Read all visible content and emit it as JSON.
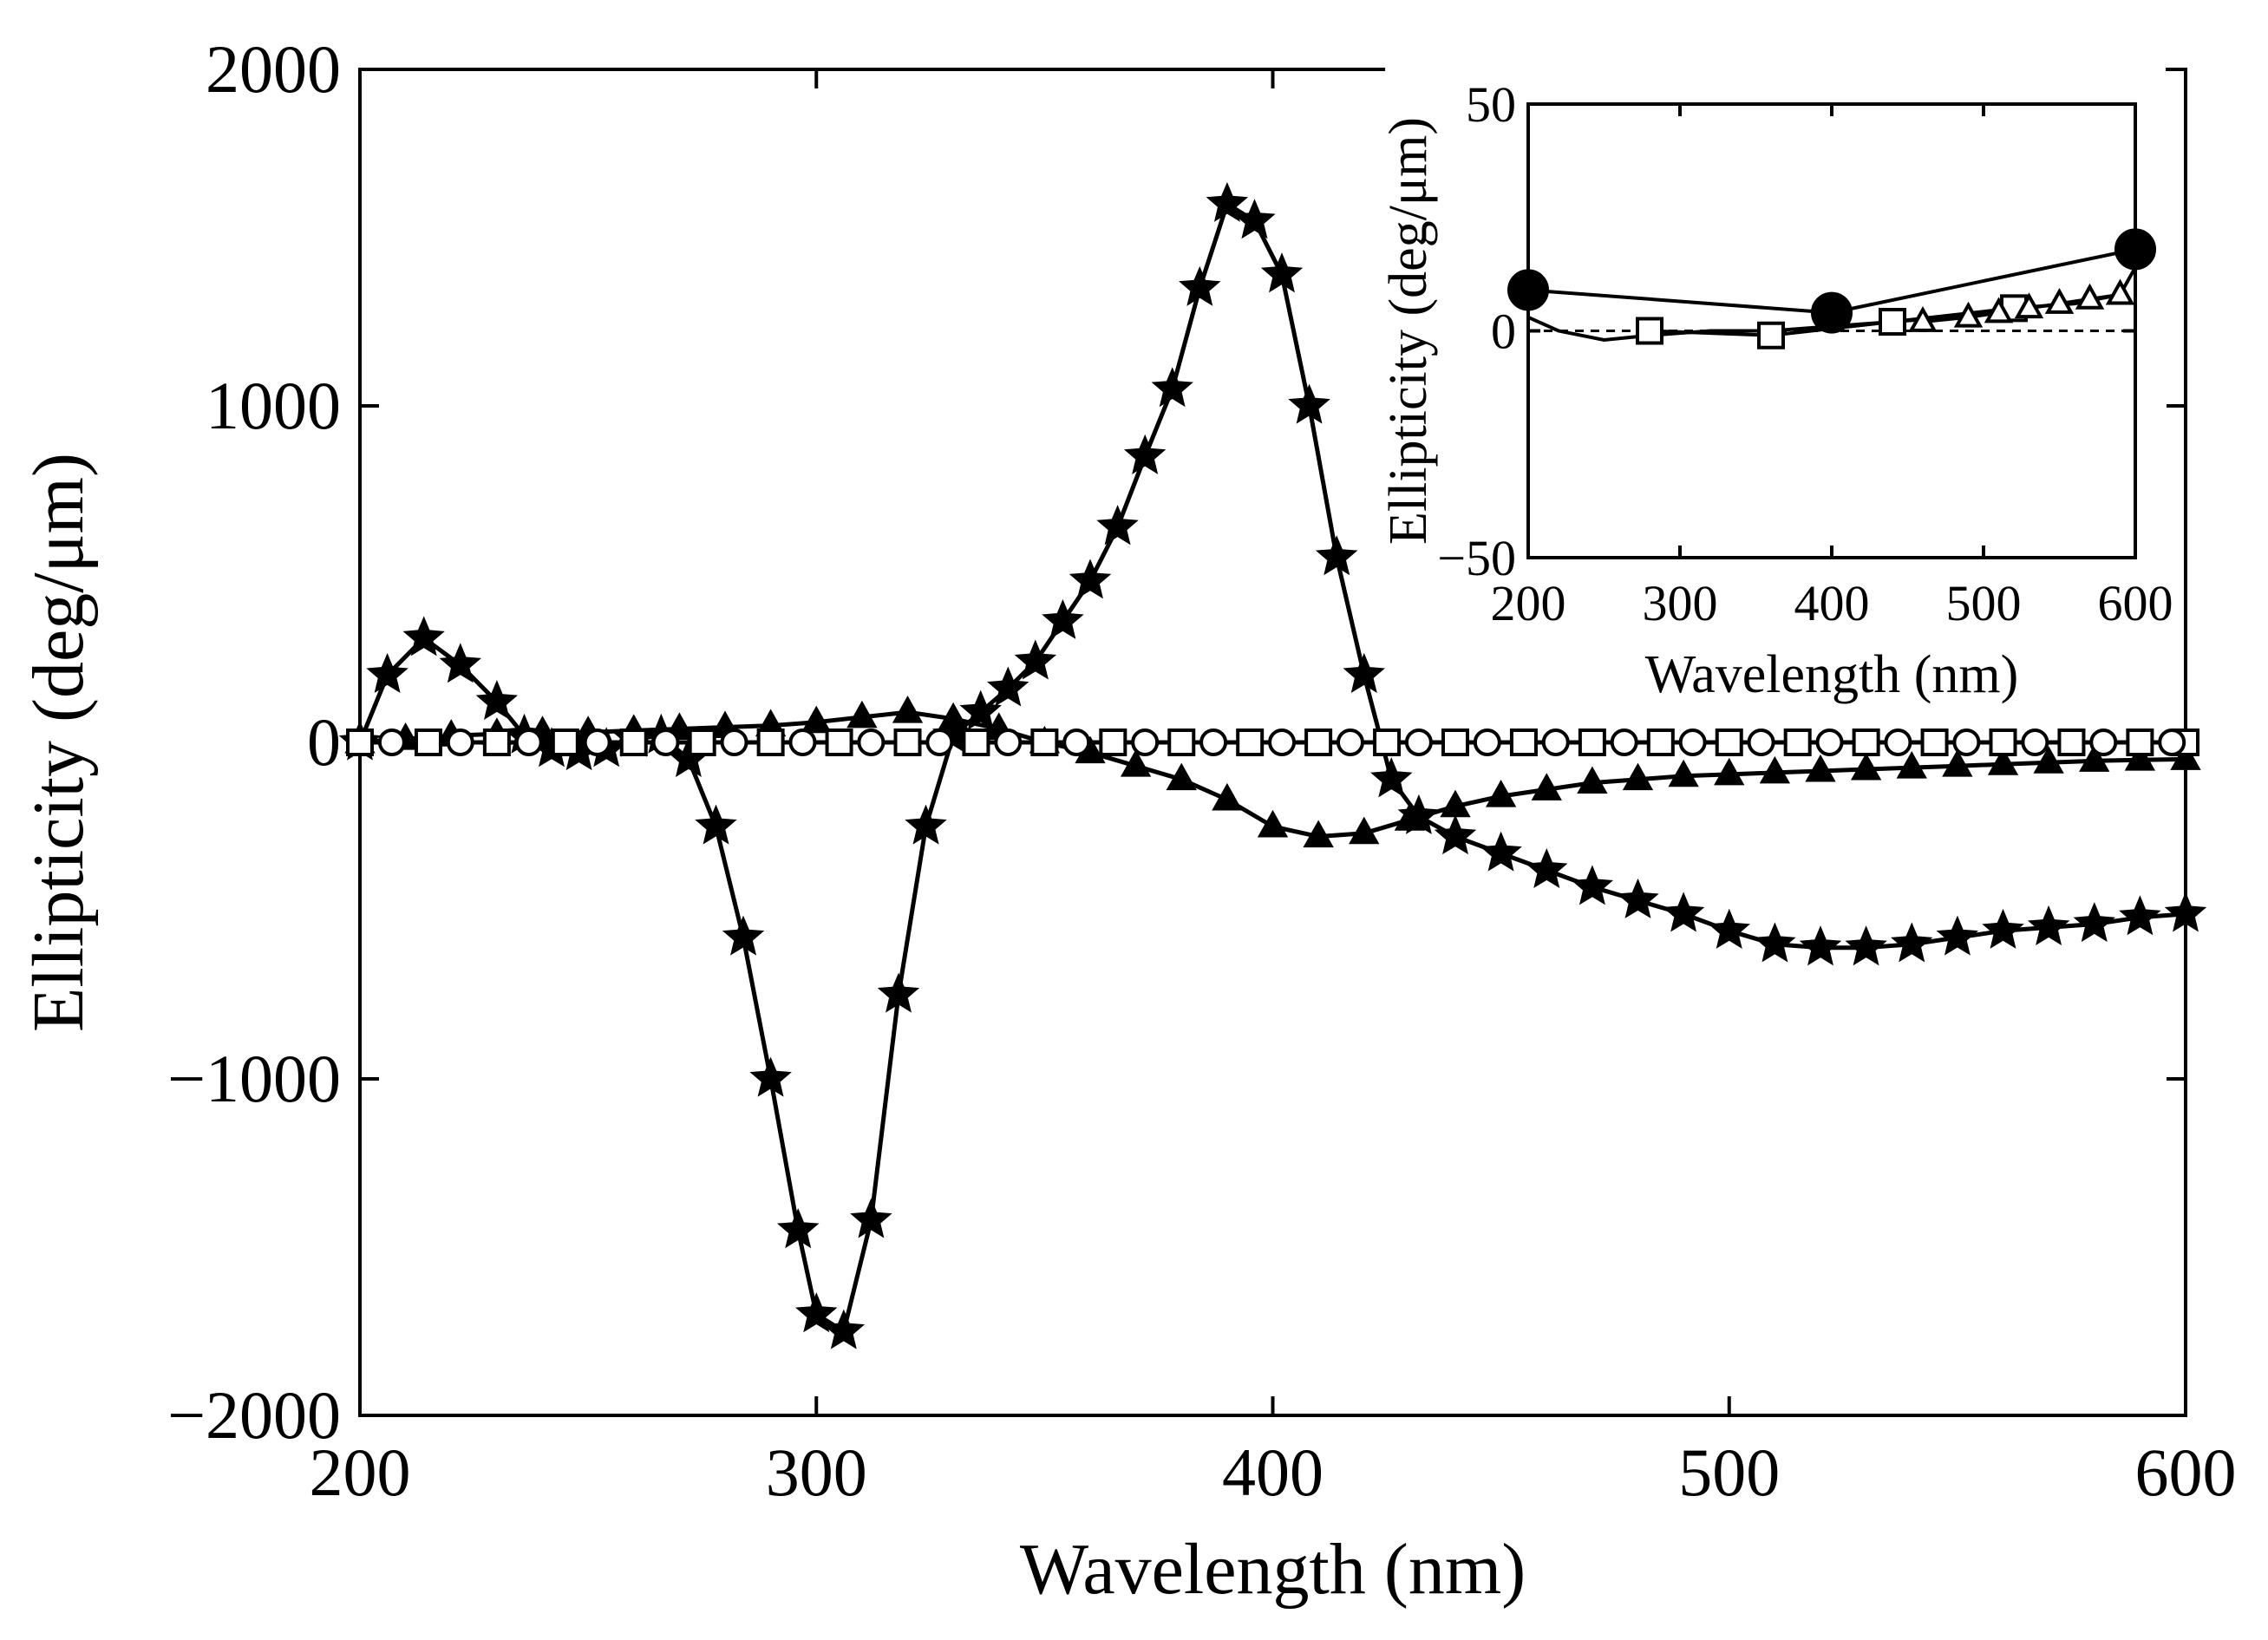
{
  "chart_data": [
    {
      "type": "line",
      "title": "",
      "xlabel": "Wavelength (nm)",
      "ylabel": "Ellipticity (deg/μm)",
      "xlim": [
        200,
        600
      ],
      "ylim": [
        -2000,
        2000
      ],
      "xticks": [
        200,
        300,
        400,
        500,
        600
      ],
      "xtick_labels": [
        "200",
        "300",
        "400",
        "500",
        "600"
      ],
      "yticks": [
        -2000,
        -1000,
        0,
        1000,
        2000
      ],
      "ytick_labels": [
        "−2000",
        "−1000",
        "0",
        "1000",
        "2000"
      ],
      "grid": false,
      "series": [
        {
          "name": "star",
          "marker": "star",
          "x": [
            200,
            206,
            214,
            222,
            230,
            236,
            242,
            248,
            254,
            260,
            266,
            272,
            278,
            284,
            290,
            296,
            300,
            306,
            312,
            318,
            324,
            330,
            336,
            342,
            348,
            354,
            360,
            366,
            372,
            378,
            384,
            390,
            396,
            402,
            408,
            414,
            420,
            426,
            432,
            440,
            450,
            460,
            470,
            480,
            490,
            500,
            510,
            520,
            530,
            540,
            550,
            560,
            570,
            580,
            590,
            600
          ],
          "y": [
            0,
            200,
            310,
            230,
            120,
            20,
            -20,
            -30,
            -20,
            10,
            20,
            -50,
            -250,
            -580,
            -1000,
            -1450,
            -1700,
            -1750,
            -1420,
            -750,
            -250,
            20,
            90,
            160,
            240,
            360,
            480,
            640,
            850,
            1050,
            1350,
            1600,
            1550,
            1390,
            1000,
            550,
            200,
            -110,
            -220,
            -280,
            -330,
            -380,
            -430,
            -470,
            -510,
            -560,
            -600,
            -610,
            -610,
            -600,
            -580,
            -560,
            -550,
            -540,
            -520,
            -510
          ]
        },
        {
          "name": "filled-triangle",
          "marker": "triangle",
          "x": [
            200,
            210,
            220,
            230,
            240,
            250,
            260,
            270,
            280,
            290,
            300,
            310,
            320,
            330,
            340,
            350,
            360,
            370,
            380,
            390,
            400,
            410,
            420,
            430,
            440,
            450,
            460,
            470,
            480,
            490,
            500,
            510,
            520,
            530,
            540,
            550,
            560,
            570,
            580,
            590,
            600
          ],
          "y": [
            0,
            10,
            20,
            25,
            30,
            30,
            35,
            40,
            45,
            50,
            60,
            75,
            90,
            70,
            40,
            0,
            -30,
            -70,
            -110,
            -170,
            -250,
            -280,
            -270,
            -230,
            -190,
            -160,
            -140,
            -120,
            -110,
            -100,
            -95,
            -90,
            -85,
            -80,
            -75,
            -70,
            -65,
            -60,
            -55,
            -52,
            -50
          ]
        },
        {
          "name": "open-square",
          "marker": "square",
          "x": [
            200,
            215,
            230,
            245,
            260,
            275,
            290,
            305,
            320,
            335,
            350,
            365,
            380,
            395,
            410,
            425,
            440,
            455,
            470,
            485,
            500,
            515,
            530,
            545,
            560,
            575,
            590,
            600
          ],
          "y": [
            0,
            0,
            0,
            0,
            0,
            0,
            0,
            0,
            0,
            0,
            0,
            0,
            0,
            0,
            0,
            0,
            0,
            0,
            0,
            0,
            0,
            0,
            0,
            0,
            0,
            0,
            0,
            0
          ]
        },
        {
          "name": "open-circle",
          "marker": "circle",
          "x": [
            207,
            222,
            237,
            252,
            267,
            282,
            297,
            312,
            327,
            342,
            357,
            372,
            387,
            402,
            417,
            432,
            447,
            462,
            477,
            492,
            507,
            522,
            537,
            552,
            567,
            582,
            597
          ],
          "y": [
            0,
            0,
            0,
            0,
            0,
            0,
            0,
            0,
            0,
            0,
            0,
            0,
            0,
            0,
            0,
            0,
            0,
            0,
            0,
            0,
            0,
            0,
            0,
            0,
            0,
            0,
            0
          ]
        }
      ]
    },
    {
      "type": "line",
      "inset": true,
      "title": "",
      "xlabel": "Wavelength (nm)",
      "ylabel": "Ellipticity (deg/μm)",
      "xlim": [
        200,
        600
      ],
      "ylim": [
        -50,
        50
      ],
      "xticks": [
        200,
        300,
        400,
        500,
        600
      ],
      "xtick_labels": [
        "200",
        "300",
        "400",
        "500",
        "600"
      ],
      "yticks": [
        -50,
        0,
        50
      ],
      "ytick_labels": [
        "−50",
        "0",
        "50"
      ],
      "grid": false,
      "series": [
        {
          "name": "filled-circle",
          "marker": "filled-circle",
          "x": [
            200,
            400,
            600
          ],
          "y": [
            9,
            4,
            18
          ]
        },
        {
          "name": "open-square",
          "marker": "square",
          "x": [
            280,
            360,
            440,
            520
          ],
          "y": [
            0,
            -1,
            2,
            5
          ]
        },
        {
          "name": "open-triangle",
          "marker": "open-triangle",
          "x": [
            460,
            490,
            510,
            530,
            550,
            570,
            590
          ],
          "y": [
            2,
            3,
            4,
            5,
            6,
            7,
            8
          ]
        },
        {
          "name": "trend-line",
          "marker": "none",
          "x": [
            200,
            220,
            250,
            280,
            320,
            360,
            400,
            440,
            480,
            520,
            560,
            590,
            600
          ],
          "y": [
            3,
            0,
            -2,
            -1,
            0,
            0,
            1,
            2,
            3,
            5,
            6,
            8,
            14
          ]
        }
      ]
    }
  ]
}
